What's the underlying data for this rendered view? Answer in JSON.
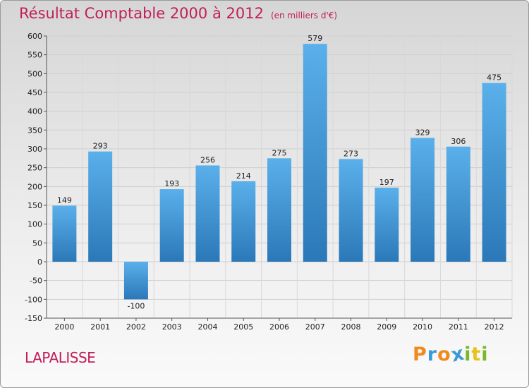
{
  "chart_data": {
    "type": "bar",
    "title": "Résultat Comptable 2000 à 2012",
    "unit_note": "(en milliers d'€)",
    "categories": [
      "2000",
      "2001",
      "2002",
      "2003",
      "2004",
      "2005",
      "2006",
      "2007",
      "2008",
      "2009",
      "2010",
      "2011",
      "2012"
    ],
    "values": [
      149,
      293,
      -100,
      193,
      256,
      214,
      275,
      579,
      273,
      197,
      329,
      306,
      475
    ],
    "value_labels": [
      "149",
      "293",
      "-100",
      "193",
      "256",
      "214",
      "275",
      "579",
      "273",
      "197",
      "329",
      "306",
      "475"
    ],
    "ylim": [
      -150,
      600
    ],
    "yticks": [
      -150,
      -100,
      -50,
      0,
      50,
      100,
      150,
      200,
      250,
      300,
      350,
      400,
      450,
      500,
      550,
      600
    ],
    "ytick_labels": [
      "-150",
      "-100",
      "-50",
      "0",
      "50",
      "100",
      "150",
      "200",
      "250",
      "300",
      "350",
      "400",
      "450",
      "500",
      "550",
      "600"
    ],
    "grid": true,
    "xlabel": "",
    "ylabel": ""
  },
  "commune": "LAPALISSE",
  "logo": {
    "letters": [
      "P",
      "r",
      "o",
      "x",
      "i",
      "t",
      "i"
    ],
    "colors": [
      "#f08a1c",
      "#3a9ad9",
      "#f08a1c",
      "#3a9ad9",
      "#7ab929",
      "#e8c11a",
      "#7ab929"
    ]
  },
  "colors": {
    "title": "#c0205a",
    "bar_top": "#5ab0ea",
    "bar_bottom": "#2b78b8"
  }
}
